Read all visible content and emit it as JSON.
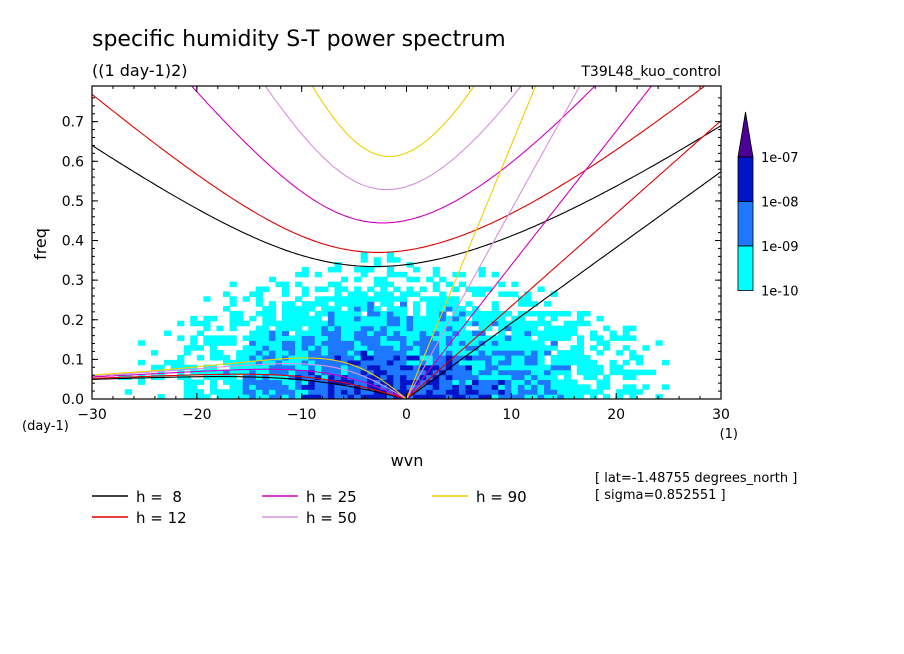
{
  "chart_data": {
    "type": "heatmap",
    "title": "specific humidity S-T power spectrum",
    "subtitle": "((1 day-1)2)",
    "run_label": "T39L48_kuo_control",
    "xlabel": "wvn",
    "ylabel": "freq",
    "x_unit": "(1)",
    "y_unit": "(day-1)",
    "xlim": [
      -30,
      30
    ],
    "ylim": [
      0,
      0.79
    ],
    "xticks": [
      -30,
      -20,
      -10,
      0,
      10,
      20,
      30
    ],
    "yticks": [
      0.0,
      0.1,
      0.2,
      0.3,
      0.4,
      0.5,
      0.6,
      0.7
    ],
    "colorbar": {
      "levels": [
        "1e-10",
        "1e-09",
        "1e-08",
        "1e-07"
      ],
      "colors": [
        "#00ffff",
        "#1e78ff",
        "#0014c8",
        "#4b0096"
      ]
    },
    "dispersion_curves": [
      {
        "label": "h =  8",
        "h": 8,
        "color": "#000000"
      },
      {
        "label": "h = 12",
        "h": 12,
        "color": "#e00000"
      },
      {
        "label": "h = 25",
        "h": 25,
        "color": "#d000c0"
      },
      {
        "label": "h = 50",
        "h": 50,
        "color": "#d890e0"
      },
      {
        "label": "h = 90",
        "h": 90,
        "color": "#f0d000"
      }
    ],
    "info": [
      "[ lat=-1.48755 degrees_north ]",
      "[ sigma=0.852551 ]"
    ]
  }
}
